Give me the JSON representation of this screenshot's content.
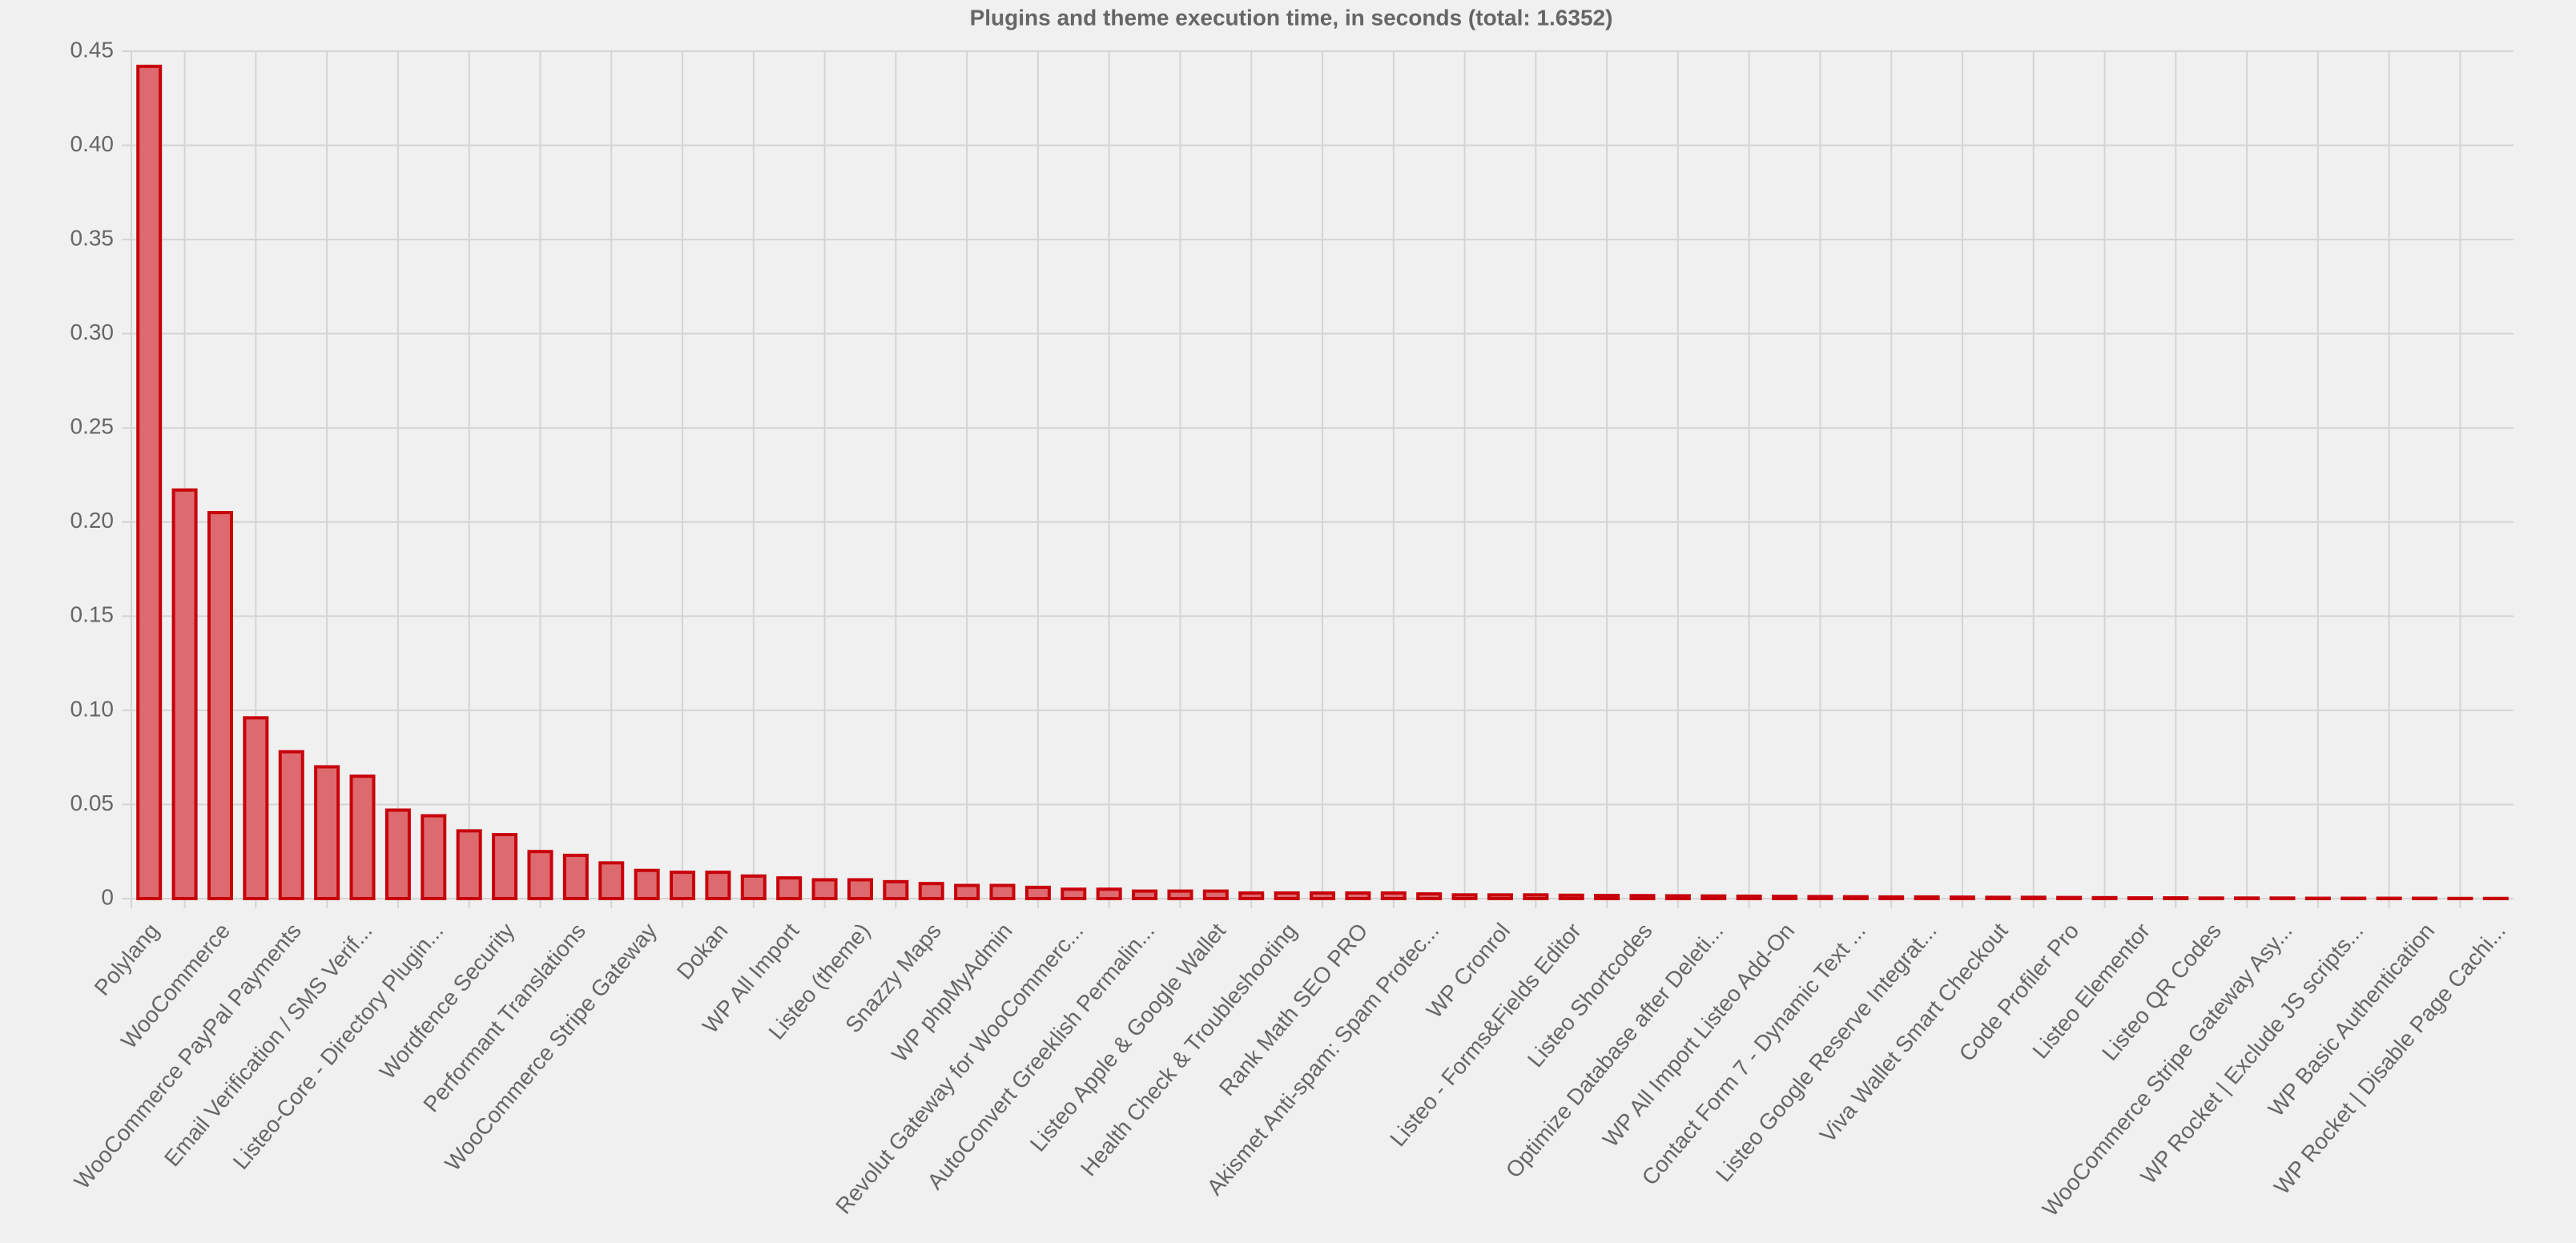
{
  "chart_data": {
    "type": "bar",
    "title": "Plugins and theme execution time, in seconds (total: 1.6352)",
    "categories": [
      "Polylang",
      null,
      "WooCommerce",
      null,
      "WooCommerce PayPal Payments",
      null,
      "Email Verification / SMS Verif...",
      null,
      "Listeo-Core - Directory Plugin...",
      null,
      "Wordfence Security",
      null,
      "Performant Translations",
      null,
      "WooCommerce Stripe Gateway",
      null,
      "Dokan",
      null,
      "WP All Import",
      null,
      "Listeo (theme)",
      null,
      "Snazzy Maps",
      null,
      "WP phpMyAdmin",
      null,
      "Revolut Gateway for WooCommerc...",
      null,
      "AutoConvert Greeklish Permalin...",
      null,
      "Listeo Apple & Google Wallet",
      null,
      "Health Check & Troubleshooting",
      null,
      "Rank Math SEO PRO",
      null,
      "Akismet Anti-spam: Spam Protec...",
      null,
      "WP Cronrol",
      null,
      "Listeo - Forms&Fields Editor",
      null,
      "Listeo Shortcodes",
      null,
      "Optimize Database after Deleti...",
      null,
      "WP All Import Listeo Add-On",
      null,
      "Contact Form 7 - Dynamic Text ...",
      null,
      "Listeo Google Reserve Integrat...",
      null,
      "Viva Wallet Smart Checkout",
      null,
      "Code Profiler Pro",
      null,
      "Listeo Elementor",
      null,
      "Listeo QR Codes",
      null,
      "WooCommerce Stripe Gateway Asy...",
      null,
      "WP Rocket | Exclude JS scripts...",
      null,
      "WP Basic Authentication",
      null,
      "WP Rocket | Disable Page Cachi..."
    ],
    "values": [
      0.442,
      0.217,
      0.205,
      0.096,
      0.078,
      0.07,
      0.065,
      0.047,
      0.044,
      0.036,
      0.034,
      0.025,
      0.023,
      0.019,
      0.015,
      0.014,
      0.014,
      0.012,
      0.011,
      0.01,
      0.01,
      0.009,
      0.008,
      0.007,
      0.007,
      0.006,
      0.005,
      0.005,
      0.004,
      0.004,
      0.004,
      0.003,
      0.003,
      0.003,
      0.003,
      0.003,
      0.0025,
      0.002,
      0.002,
      0.002,
      0.0018,
      0.0017,
      0.0016,
      0.0015,
      0.0014,
      0.0013,
      0.0012,
      0.0011,
      0.001,
      0.0009,
      0.0009,
      0.0008,
      0.0007,
      0.0007,
      0.0006,
      0.0005,
      0.0004,
      0.0004,
      0.0003,
      0.0003,
      0.0003,
      0.0002,
      0.0002,
      0.0002,
      0.0002,
      0.0001,
      0.0001
    ],
    "color": "#dc6a6e",
    "border_color": "#c8000a",
    "ylim": [
      0,
      0.45
    ],
    "yticks": [
      0,
      0.05,
      {
        "value": 0.1,
        "label": "0.10"
      },
      0.15,
      {
        "value": 0.2,
        "label": "0.20"
      },
      0.25,
      {
        "value": 0.3,
        "label": "0.30"
      },
      0.35,
      {
        "value": 0.4,
        "label": "0.40"
      },
      0.45
    ],
    "grid": true
  }
}
